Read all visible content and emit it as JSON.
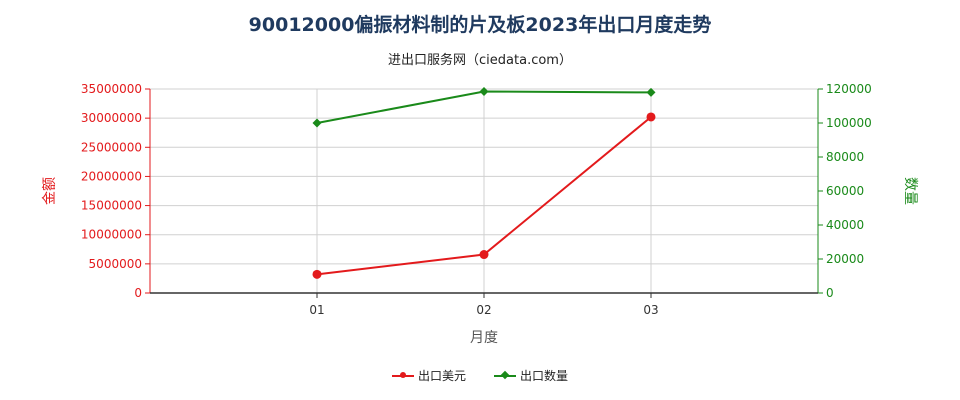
{
  "chart_data": {
    "type": "line",
    "title": "90012000偏振材料制的片及板2023年出口月度走势",
    "subtitle": "进出口服务网（ciedata.com）",
    "xlabel": "月度",
    "categories": [
      "01",
      "02",
      "03"
    ],
    "y_left": {
      "label": "金额",
      "ylim": [
        0,
        35000000
      ],
      "ticks": [
        "0",
        "5000000",
        "10000000",
        "15000000",
        "20000000",
        "25000000",
        "30000000",
        "35000000"
      ],
      "color": "#e31a1c"
    },
    "y_right": {
      "label": "数量",
      "ylim": [
        0,
        120000
      ],
      "ticks": [
        "0",
        "20000",
        "40000",
        "60000",
        "80000",
        "100000",
        "120000"
      ],
      "color": "#1a8a1a"
    },
    "series": [
      {
        "name": "出口美元",
        "axis": "left",
        "color": "#e31a1c",
        "marker": "circle",
        "values": [
          3200000,
          6600000,
          30200000
        ]
      },
      {
        "name": "出口数量",
        "axis": "right",
        "color": "#1a8a1a",
        "marker": "diamond",
        "values": [
          100000,
          118500,
          118000
        ]
      }
    ],
    "grid": true,
    "legend_position": "bottom-center"
  }
}
